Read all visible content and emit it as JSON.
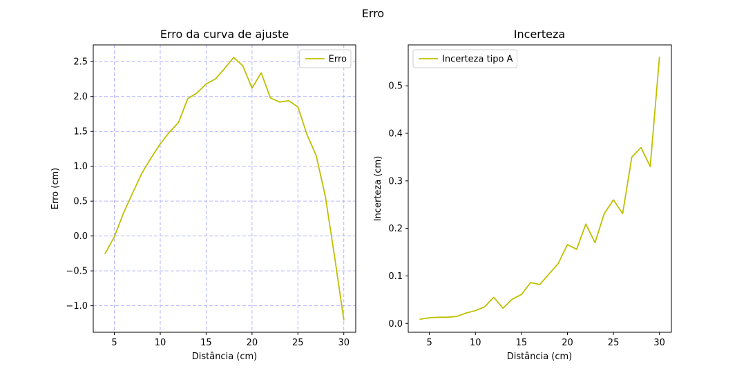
{
  "figure": {
    "suptitle": "Erro"
  },
  "chart_data": [
    {
      "type": "line",
      "title": "Erro da curva de ajuste",
      "xlabel": "Distância (cm)",
      "ylabel": "Erro (cm)",
      "xlim": [
        2.7,
        31.3
      ],
      "ylim": [
        -1.38,
        2.74
      ],
      "xticks": [
        5,
        10,
        15,
        20,
        25,
        30
      ],
      "yticks": [
        -1.0,
        -0.5,
        0.0,
        0.5,
        1.0,
        1.5,
        2.0,
        2.5
      ],
      "xtick_labels": [
        "5",
        "10",
        "15",
        "20",
        "25",
        "30"
      ],
      "ytick_labels": [
        "−1.0",
        "−0.5",
        "0.0",
        "0.5",
        "1.0",
        "1.5",
        "2.0",
        "2.5"
      ],
      "grid": true,
      "grid_color": "#b3b3ff",
      "legend_position": "top-right",
      "series": [
        {
          "name": "Erro",
          "color": "#bfbf00",
          "x": [
            4,
            5,
            6,
            7,
            8,
            9,
            10,
            11,
            12,
            13,
            14,
            15,
            16,
            17,
            18,
            19,
            20,
            21,
            22,
            23,
            24,
            25,
            26,
            27,
            28,
            29,
            30
          ],
          "y": [
            -0.25,
            -0.01,
            0.33,
            0.62,
            0.9,
            1.12,
            1.32,
            1.49,
            1.63,
            1.97,
            2.05,
            2.18,
            2.25,
            2.4,
            2.56,
            2.44,
            2.12,
            2.34,
            1.98,
            1.92,
            1.94,
            1.85,
            1.45,
            1.15,
            0.56,
            -0.3,
            -1.2
          ]
        }
      ]
    },
    {
      "type": "line",
      "title": "Incerteza",
      "xlabel": "Distância (cm)",
      "ylabel": "Incerteza (cm)",
      "xlim": [
        2.7,
        31.3
      ],
      "ylim": [
        -0.0185,
        0.586
      ],
      "xticks": [
        5,
        10,
        15,
        20,
        25,
        30
      ],
      "yticks": [
        0.0,
        0.1,
        0.2,
        0.3,
        0.4,
        0.5
      ],
      "xtick_labels": [
        "5",
        "10",
        "15",
        "20",
        "25",
        "30"
      ],
      "ytick_labels": [
        "0.0",
        "0.1",
        "0.2",
        "0.3",
        "0.4",
        "0.5"
      ],
      "grid": false,
      "legend_position": "top-left",
      "series": [
        {
          "name": "Incerteza tipo A",
          "color": "#bfbf00",
          "x": [
            4,
            5,
            6,
            7,
            8,
            9,
            10,
            11,
            12,
            13,
            14,
            15,
            16,
            17,
            18,
            19,
            20,
            21,
            22,
            23,
            24,
            25,
            26,
            27,
            28,
            29,
            30
          ],
          "y": [
            0.009,
            0.012,
            0.013,
            0.013,
            0.015,
            0.022,
            0.027,
            0.035,
            0.055,
            0.032,
            0.051,
            0.061,
            0.086,
            0.082,
            0.104,
            0.126,
            0.166,
            0.156,
            0.209,
            0.17,
            0.231,
            0.26,
            0.231,
            0.35,
            0.37,
            0.33,
            0.56
          ]
        }
      ]
    }
  ]
}
